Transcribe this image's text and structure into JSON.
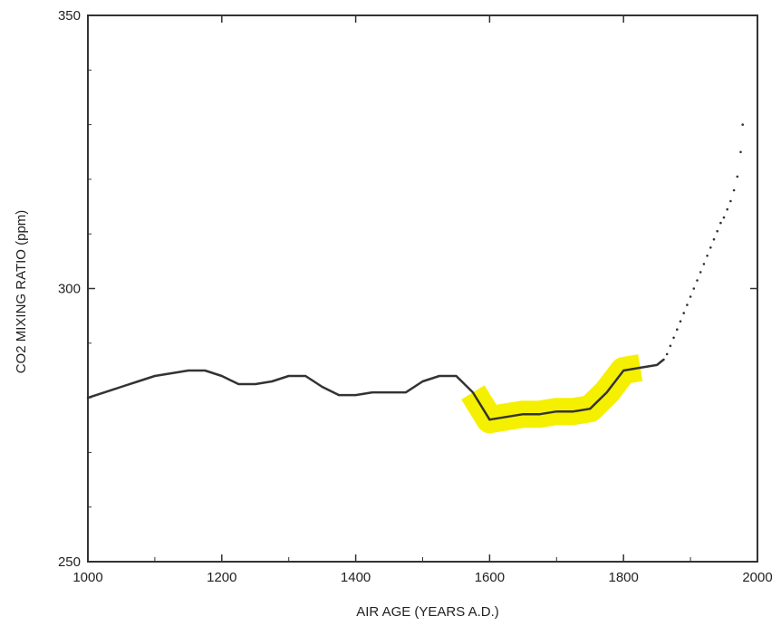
{
  "chart_data": {
    "type": "line",
    "title": "",
    "xlabel": "AIR AGE (YEARS A.D.)",
    "ylabel": "CO2 MIXING RATIO (ppm)",
    "xlim": [
      1000,
      2000
    ],
    "ylim": [
      250,
      350
    ],
    "x_ticks": [
      1000,
      1200,
      1400,
      1600,
      1800,
      2000
    ],
    "x_tick_labels": [
      "1000",
      "1200",
      "1400",
      "1600",
      "1800",
      "2000"
    ],
    "y_ticks": [
      250,
      300,
      350
    ],
    "y_tick_labels": [
      "250",
      "300",
      "350"
    ],
    "grid": false,
    "colors": {
      "line": "#333333",
      "highlight": "#f5f000",
      "axis": "#333333"
    },
    "series": [
      {
        "style": "solid-line",
        "x": [
          1000,
          1025,
          1050,
          1075,
          1100,
          1125,
          1150,
          1175,
          1200,
          1225,
          1250,
          1275,
          1300,
          1325,
          1350,
          1375,
          1400,
          1425,
          1450,
          1475,
          1500,
          1525,
          1550,
          1575,
          1600,
          1625,
          1650,
          1675,
          1700,
          1725,
          1750,
          1775,
          1800,
          1825,
          1850,
          1860
        ],
        "y": [
          280,
          281,
          282,
          283,
          284,
          284.5,
          285,
          285,
          284,
          282.5,
          282.5,
          283,
          284,
          284,
          282,
          280.5,
          280.5,
          281,
          281,
          281,
          283,
          284,
          284,
          281,
          276,
          276.5,
          277,
          277,
          277.5,
          277.5,
          278,
          281,
          285,
          285.5,
          286,
          287
        ]
      },
      {
        "style": "dots",
        "x": [
          1865,
          1870,
          1875,
          1880,
          1885,
          1890,
          1895,
          1900,
          1905,
          1910,
          1915,
          1920,
          1925,
          1930,
          1935,
          1940,
          1945,
          1950,
          1955,
          1960,
          1965,
          1970,
          1975,
          1978
        ],
        "y": [
          288,
          289.5,
          291,
          292.5,
          294,
          295.5,
          297,
          298.5,
          300,
          301.5,
          303,
          304.5,
          306,
          307.5,
          309,
          310.5,
          312,
          313,
          314.5,
          316,
          318,
          320.5,
          325,
          330
        ]
      }
    ],
    "highlight": {
      "x_range": [
        1560,
        1820
      ],
      "color": "#f5f000"
    }
  }
}
